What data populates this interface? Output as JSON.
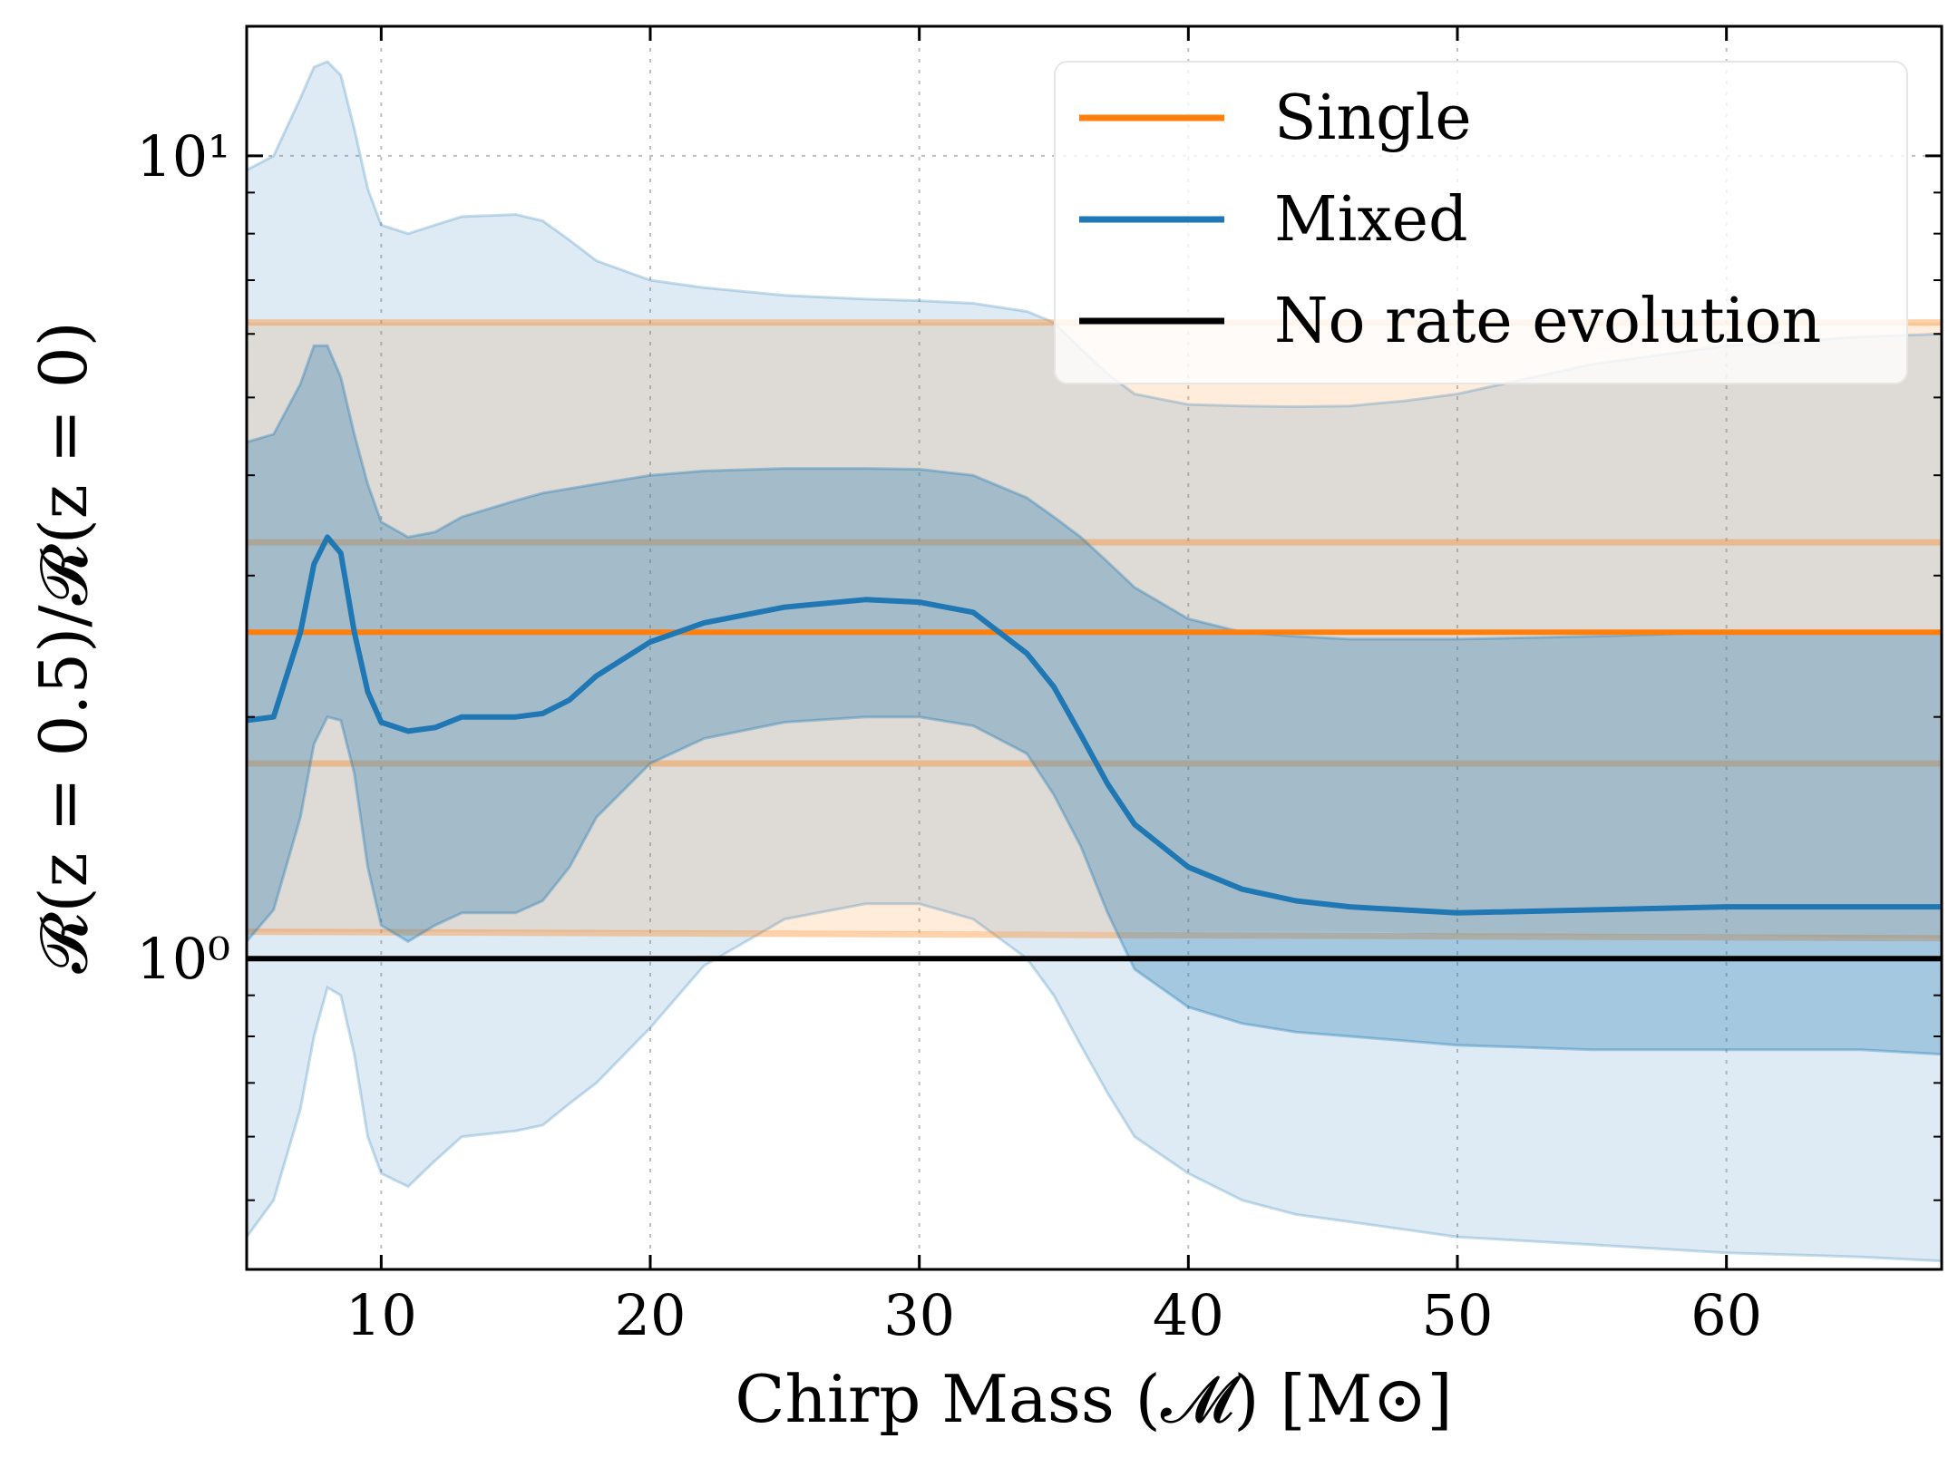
{
  "chart_data": {
    "type": "line",
    "yscale": "log",
    "xlim": [
      5,
      68
    ],
    "ylim": [
      0.41,
      14.5
    ],
    "xticks": [
      10,
      20,
      30,
      40,
      50,
      60
    ],
    "xtick_labels": [
      "10",
      "20",
      "30",
      "40",
      "50",
      "60"
    ],
    "ytick_major": [
      1,
      10
    ],
    "ytick_labels": [
      "10⁰",
      "10¹"
    ],
    "grid": true,
    "xlabel": "Chirp Mass (𝓜) [M⊙]",
    "ylabel": "𝓡(z = 0.5)/𝓡(z = 0)",
    "legend": {
      "position": "top-right",
      "entries": [
        {
          "label": "Single",
          "color": "#ff7f0e"
        },
        {
          "label": "Mixed",
          "color": "#1f77b4"
        },
        {
          "label": "No rate evolution",
          "color": "#000000"
        }
      ]
    },
    "colors": {
      "single": "#ff7f0e",
      "mixed": "#1f77b4",
      "reference": "#000000"
    },
    "single": {
      "median": 2.55,
      "band68": [
        1.75,
        3.3
      ],
      "band95_x": [
        5,
        22,
        24,
        28,
        30,
        33,
        37,
        40,
        44,
        47,
        50,
        55,
        60,
        65,
        68
      ],
      "band95_upper": [
        6.2,
        6.2,
        6.2,
        6.2,
        6.2,
        6.2,
        6.2,
        6.2,
        6.2,
        6.2,
        6.2,
        6.2,
        6.2,
        6.2,
        6.2
      ],
      "band95_lower": [
        1.08,
        1.08,
        1.08,
        1.08,
        1.08,
        1.08,
        1.08,
        1.08,
        1.08,
        1.08,
        1.07,
        1.07,
        1.07,
        1.06,
        1.06
      ]
    },
    "mixed": {
      "x": [
        5,
        6,
        7,
        7.5,
        8,
        8.5,
        9,
        9.5,
        10,
        11,
        12,
        13,
        15,
        16,
        17,
        18,
        20,
        22,
        25,
        28,
        30,
        32,
        34,
        35,
        36,
        37,
        38,
        40,
        42,
        44,
        46,
        48,
        50,
        55,
        60,
        65,
        68
      ],
      "median": [
        1.98,
        2.0,
        2.55,
        3.1,
        3.35,
        3.2,
        2.55,
        2.15,
        1.97,
        1.92,
        1.94,
        2.0,
        2.0,
        2.02,
        2.1,
        2.25,
        2.48,
        2.62,
        2.74,
        2.8,
        2.78,
        2.7,
        2.4,
        2.18,
        1.9,
        1.65,
        1.47,
        1.3,
        1.22,
        1.18,
        1.16,
        1.15,
        1.14,
        1.15,
        1.16,
        1.16,
        1.16
      ],
      "band68_upper": [
        4.4,
        4.5,
        5.2,
        5.8,
        5.8,
        5.3,
        4.5,
        3.9,
        3.5,
        3.35,
        3.4,
        3.55,
        3.72,
        3.8,
        3.85,
        3.9,
        4.0,
        4.05,
        4.08,
        4.08,
        4.07,
        4.0,
        3.75,
        3.55,
        3.35,
        3.12,
        2.9,
        2.65,
        2.55,
        2.52,
        2.5,
        2.5,
        2.5,
        2.52,
        2.55,
        2.55,
        2.55
      ],
      "band68_lower": [
        1.05,
        1.15,
        1.5,
        1.85,
        2.0,
        1.98,
        1.7,
        1.3,
        1.1,
        1.05,
        1.1,
        1.14,
        1.14,
        1.18,
        1.3,
        1.5,
        1.75,
        1.88,
        1.97,
        2.0,
        2.0,
        1.95,
        1.8,
        1.6,
        1.38,
        1.14,
        0.97,
        0.87,
        0.83,
        0.81,
        0.8,
        0.79,
        0.78,
        0.77,
        0.77,
        0.77,
        0.76
      ],
      "band95_upper": [
        9.6,
        10.0,
        11.8,
        12.9,
        13.1,
        12.6,
        10.8,
        9.1,
        8.2,
        8.0,
        8.2,
        8.4,
        8.45,
        8.3,
        7.85,
        7.4,
        7.0,
        6.85,
        6.7,
        6.63,
        6.6,
        6.55,
        6.4,
        6.2,
        5.75,
        5.35,
        5.05,
        4.9,
        4.88,
        4.87,
        4.88,
        4.95,
        5.05,
        5.5,
        5.8,
        5.95,
        6.0
      ],
      "band95_lower": [
        0.45,
        0.5,
        0.65,
        0.8,
        0.92,
        0.9,
        0.76,
        0.6,
        0.54,
        0.52,
        0.56,
        0.6,
        0.61,
        0.62,
        0.66,
        0.7,
        0.82,
        0.98,
        1.12,
        1.17,
        1.17,
        1.12,
        1.0,
        0.9,
        0.78,
        0.68,
        0.6,
        0.54,
        0.5,
        0.48,
        0.47,
        0.46,
        0.45,
        0.44,
        0.43,
        0.425,
        0.42
      ]
    },
    "reference_line": 1.0
  }
}
